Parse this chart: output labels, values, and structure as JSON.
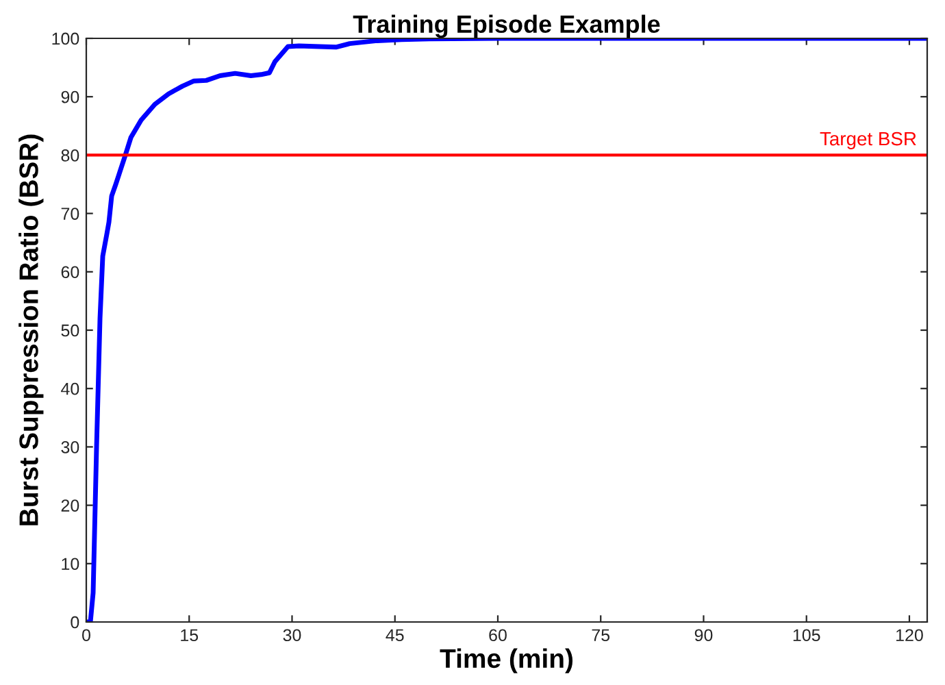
{
  "chart_data": {
    "type": "line",
    "title": "Training Episode Example",
    "xlabel": "Time (min)",
    "ylabel": "Burst Suppression Ratio (BSR)",
    "series": [
      {
        "color": "#0000ff",
        "x": [
          0,
          0.6,
          1,
          1.5,
          2,
          2.4,
          3,
          3.3,
          3.7,
          4.3,
          5,
          5.7,
          6.5,
          8,
          10,
          12,
          14,
          15.7,
          17.5,
          19.5,
          21.7,
          24,
          25.5,
          26.7,
          27.5,
          29.4,
          31,
          34,
          36.4,
          38.4,
          42.4,
          46,
          50,
          60,
          122.6
        ],
        "values": [
          0,
          0,
          5,
          30,
          52,
          62.7,
          66.5,
          68.5,
          73,
          75,
          77.5,
          80,
          83,
          86,
          88.7,
          90.5,
          91.8,
          92.7,
          92.8,
          93.6,
          94,
          93.6,
          93.8,
          94.1,
          96,
          98.6,
          98.7,
          98.6,
          98.5,
          99.1,
          99.6,
          99.8,
          99.9,
          100,
          100
        ]
      }
    ],
    "xlim": [
      0,
      122.6
    ],
    "ylim": [
      0,
      100
    ],
    "xticks": [
      0,
      15,
      30,
      45,
      60,
      75,
      90,
      105,
      120
    ],
    "yticks": [
      0,
      10,
      20,
      30,
      40,
      50,
      60,
      70,
      80,
      90,
      100
    ],
    "ref_lines": [
      {
        "axis": "y",
        "value": 80,
        "label": "Target BSR",
        "color": "#ff0000"
      }
    ],
    "grid": false,
    "legend": false
  }
}
